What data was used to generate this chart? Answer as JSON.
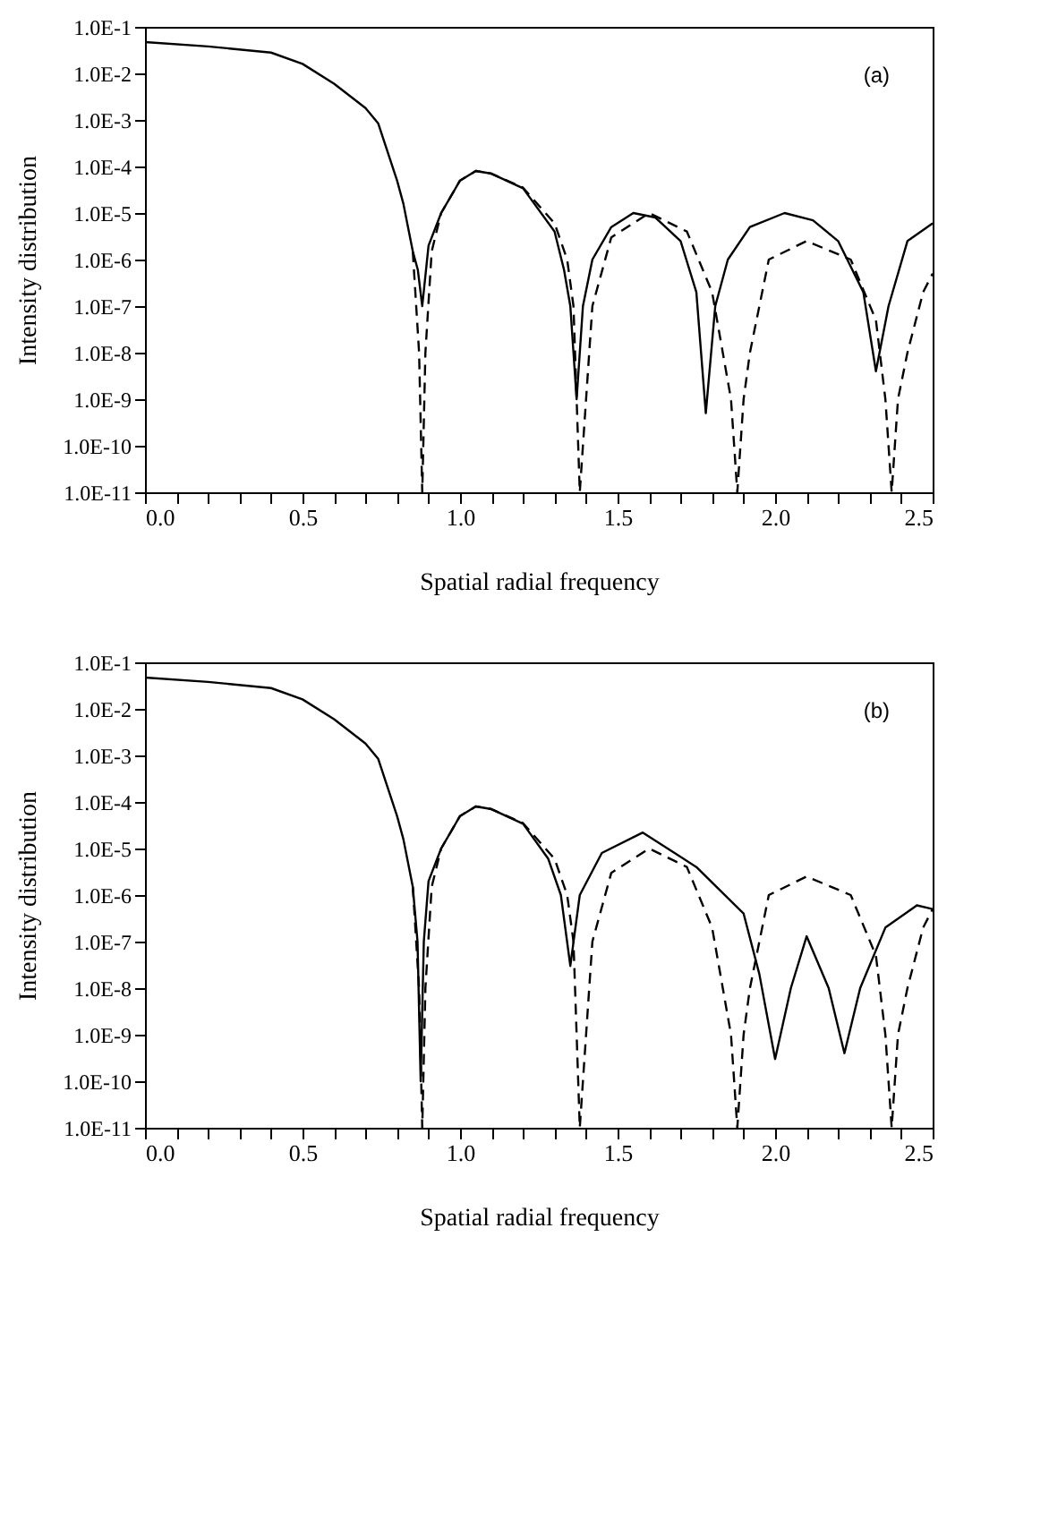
{
  "chart_data": [
    {
      "type": "line",
      "xlabel": "Spatial radial frequency",
      "ylabel": "Intensity distribution",
      "annotations": [
        "(a)"
      ],
      "log": true,
      "xlim": [
        0,
        2.5
      ],
      "ylim": [
        1e-11,
        0.1
      ],
      "xticks": [
        {
          "value": 0,
          "label": "0.0"
        },
        {
          "value": 0.1,
          "label": null
        },
        {
          "value": 0.2,
          "label": null
        },
        {
          "value": 0.3,
          "label": null
        },
        {
          "value": 0.4,
          "label": null
        },
        {
          "value": 0.5,
          "label": "0.5"
        },
        {
          "value": 0.6,
          "label": null
        },
        {
          "value": 0.7,
          "label": null
        },
        {
          "value": 0.8,
          "label": null
        },
        {
          "value": 0.9,
          "label": null
        },
        {
          "value": 1,
          "label": "1.0"
        },
        {
          "value": 1.1,
          "label": null
        },
        {
          "value": 1.2,
          "label": null
        },
        {
          "value": 1.3,
          "label": null
        },
        {
          "value": 1.4,
          "label": null
        },
        {
          "value": 1.5,
          "label": "1.5"
        },
        {
          "value": 1.6,
          "label": null
        },
        {
          "value": 1.7,
          "label": null
        },
        {
          "value": 1.8,
          "label": null
        },
        {
          "value": 1.9,
          "label": null
        },
        {
          "value": 2,
          "label": "2.0"
        },
        {
          "value": 2.1,
          "label": null
        },
        {
          "value": 2.2,
          "label": null
        },
        {
          "value": 2.3,
          "label": null
        },
        {
          "value": 2.4,
          "label": null
        },
        {
          "value": 2.5,
          "label": "2.5"
        }
      ],
      "yticks": [
        {
          "value": 1e-11,
          "label": "1.0E-11"
        },
        {
          "value": 1e-10,
          "label": "1.0E-10"
        },
        {
          "value": 1e-09,
          "label": "1.0E-9"
        },
        {
          "value": 1e-08,
          "label": "1.0E-8"
        },
        {
          "value": 1e-07,
          "label": "1.0E-7"
        },
        {
          "value": 1e-06,
          "label": "1.0E-6"
        },
        {
          "value": 1e-05,
          "label": "1.0E-5"
        },
        {
          "value": 0.0001,
          "label": "1.0E-4"
        },
        {
          "value": 0.001,
          "label": "1.0E-3"
        },
        {
          "value": 0.01,
          "label": "1.0E-2"
        },
        {
          "value": 0.1,
          "label": "1.0E-1"
        }
      ],
      "series": [
        {
          "color": "#000000",
          "line_style": "solid",
          "x": [
            0,
            0.2,
            0.4,
            0.5,
            0.6,
            0.7,
            0.74,
            0.8,
            0.82,
            0.85,
            0.866,
            0.88,
            0.9,
            0.94,
            1.0,
            1.05,
            1.1,
            1.2,
            1.3,
            1.33,
            1.35,
            1.37,
            1.39,
            1.42,
            1.48,
            1.55,
            1.62,
            1.7,
            1.75,
            1.78,
            1.81,
            1.85,
            1.92,
            2.03,
            2.12,
            2.2,
            2.28,
            2.32,
            2.36,
            2.42,
            2.5
          ],
          "values": [
            0.047,
            0.038,
            0.028,
            0.016,
            0.006,
            0.0018,
            0.00085,
            5e-05,
            1.6e-05,
            1.5e-06,
            6e-07,
            1e-07,
            2e-06,
            1e-05,
            5e-05,
            8e-05,
            7e-05,
            3.4e-05,
            4e-06,
            6e-07,
            1e-07,
            1e-09,
            1e-07,
            1e-06,
            5e-06,
            1e-05,
            8e-06,
            2.5e-06,
            2e-07,
            5e-10,
            1e-07,
            1e-06,
            5e-06,
            1e-05,
            7e-06,
            2.5e-06,
            2e-07,
            4e-09,
            1e-07,
            2.5e-06,
            6e-06
          ]
        },
        {
          "color": "#000000",
          "line_style": "dashed",
          "x": [
            0.85,
            0.87,
            0.88,
            0.89,
            0.91,
            0.94,
            1.0,
            1.05,
            1.1,
            1.2,
            1.3,
            1.34,
            1.36,
            1.38,
            1.4,
            1.42,
            1.48,
            1.6,
            1.72,
            1.8,
            1.86,
            1.88,
            1.9,
            1.92,
            1.98,
            2.1,
            2.24,
            2.32,
            2.35,
            2.37,
            2.39,
            2.42,
            2.47,
            2.5
          ],
          "values": [
            1.5e-06,
            1e-08,
            1e-11,
            1e-08,
            1.5e-06,
            1e-05,
            5e-05,
            8e-05,
            7e-05,
            3.5e-05,
            6e-06,
            1e-06,
            1e-07,
            1e-11,
            1e-09,
            1e-07,
            3e-06,
            1e-05,
            4e-06,
            2e-07,
            1e-09,
            1e-11,
            1e-09,
            1e-08,
            1e-06,
            2.5e-06,
            1e-06,
            5e-08,
            1e-09,
            1e-11,
            1e-09,
            1e-08,
            2e-07,
            5e-07
          ]
        }
      ]
    },
    {
      "type": "line",
      "xlabel": "Spatial radial frequency",
      "ylabel": "Intensity distribution",
      "annotations": [
        "(b)"
      ],
      "log": true,
      "xlim": [
        0,
        2.5
      ],
      "ylim": [
        1e-11,
        0.1
      ],
      "xticks": [
        {
          "value": 0,
          "label": "0.0"
        },
        {
          "value": 0.1,
          "label": null
        },
        {
          "value": 0.2,
          "label": null
        },
        {
          "value": 0.3,
          "label": null
        },
        {
          "value": 0.4,
          "label": null
        },
        {
          "value": 0.5,
          "label": "0.5"
        },
        {
          "value": 0.6,
          "label": null
        },
        {
          "value": 0.7,
          "label": null
        },
        {
          "value": 0.8,
          "label": null
        },
        {
          "value": 0.9,
          "label": null
        },
        {
          "value": 1,
          "label": "1.0"
        },
        {
          "value": 1.1,
          "label": null
        },
        {
          "value": 1.2,
          "label": null
        },
        {
          "value": 1.3,
          "label": null
        },
        {
          "value": 1.4,
          "label": null
        },
        {
          "value": 1.5,
          "label": "1.5"
        },
        {
          "value": 1.6,
          "label": null
        },
        {
          "value": 1.7,
          "label": null
        },
        {
          "value": 1.8,
          "label": null
        },
        {
          "value": 1.9,
          "label": null
        },
        {
          "value": 2,
          "label": "2.0"
        },
        {
          "value": 2.1,
          "label": null
        },
        {
          "value": 2.2,
          "label": null
        },
        {
          "value": 2.3,
          "label": null
        },
        {
          "value": 2.4,
          "label": null
        },
        {
          "value": 2.5,
          "label": "2.5"
        }
      ],
      "yticks": [
        {
          "value": 1e-11,
          "label": "1.0E-11"
        },
        {
          "value": 1e-10,
          "label": "1.0E-10"
        },
        {
          "value": 1e-09,
          "label": "1.0E-9"
        },
        {
          "value": 1e-08,
          "label": "1.0E-8"
        },
        {
          "value": 1e-07,
          "label": "1.0E-7"
        },
        {
          "value": 1e-06,
          "label": "1.0E-6"
        },
        {
          "value": 1e-05,
          "label": "1.0E-5"
        },
        {
          "value": 0.0001,
          "label": "1.0E-4"
        },
        {
          "value": 0.001,
          "label": "1.0E-3"
        },
        {
          "value": 0.01,
          "label": "1.0E-2"
        },
        {
          "value": 0.1,
          "label": "1.0E-1"
        }
      ],
      "series": [
        {
          "color": "#000000",
          "line_style": "solid",
          "x": [
            0,
            0.2,
            0.4,
            0.5,
            0.6,
            0.7,
            0.74,
            0.8,
            0.82,
            0.85,
            0.865,
            0.875,
            0.885,
            0.9,
            0.94,
            1.0,
            1.05,
            1.1,
            1.2,
            1.28,
            1.32,
            1.35,
            1.38,
            1.45,
            1.58,
            1.75,
            1.9,
            1.95,
            2.0,
            2.05,
            2.1,
            2.17,
            2.22,
            2.27,
            2.35,
            2.45,
            2.5
          ],
          "values": [
            0.047,
            0.038,
            0.028,
            0.016,
            0.006,
            0.0018,
            0.00085,
            5e-05,
            1.6e-05,
            1.5e-06,
            1e-07,
            1e-10,
            1e-07,
            2e-06,
            1e-05,
            5e-05,
            8e-05,
            7e-05,
            3.4e-05,
            6e-06,
            1e-06,
            3e-08,
            1e-06,
            8e-06,
            2.2e-05,
            4e-06,
            4e-07,
            2e-08,
            3e-10,
            1e-08,
            1.3e-07,
            1e-08,
            4e-10,
            1e-08,
            2e-07,
            6e-07,
            5e-07
          ]
        },
        {
          "color": "#000000",
          "line_style": "dashed",
          "x": [
            0.85,
            0.87,
            0.88,
            0.89,
            0.91,
            0.94,
            1.0,
            1.05,
            1.1,
            1.2,
            1.3,
            1.34,
            1.36,
            1.38,
            1.4,
            1.42,
            1.48,
            1.6,
            1.72,
            1.8,
            1.86,
            1.88,
            1.9,
            1.92,
            1.98,
            2.1,
            2.24,
            2.32,
            2.35,
            2.37,
            2.39,
            2.42,
            2.47,
            2.5
          ],
          "values": [
            1.5e-06,
            1e-08,
            1e-11,
            1e-08,
            1.5e-06,
            1e-05,
            5e-05,
            8e-05,
            7e-05,
            3.5e-05,
            6e-06,
            1e-06,
            1e-07,
            1e-11,
            1e-09,
            1e-07,
            3e-06,
            1e-05,
            4e-06,
            2e-07,
            1e-09,
            1e-11,
            1e-09,
            1e-08,
            1e-06,
            2.5e-06,
            1e-06,
            5e-08,
            1e-09,
            1e-11,
            1e-09,
            1e-08,
            2e-07,
            5e-07
          ]
        }
      ]
    }
  ]
}
